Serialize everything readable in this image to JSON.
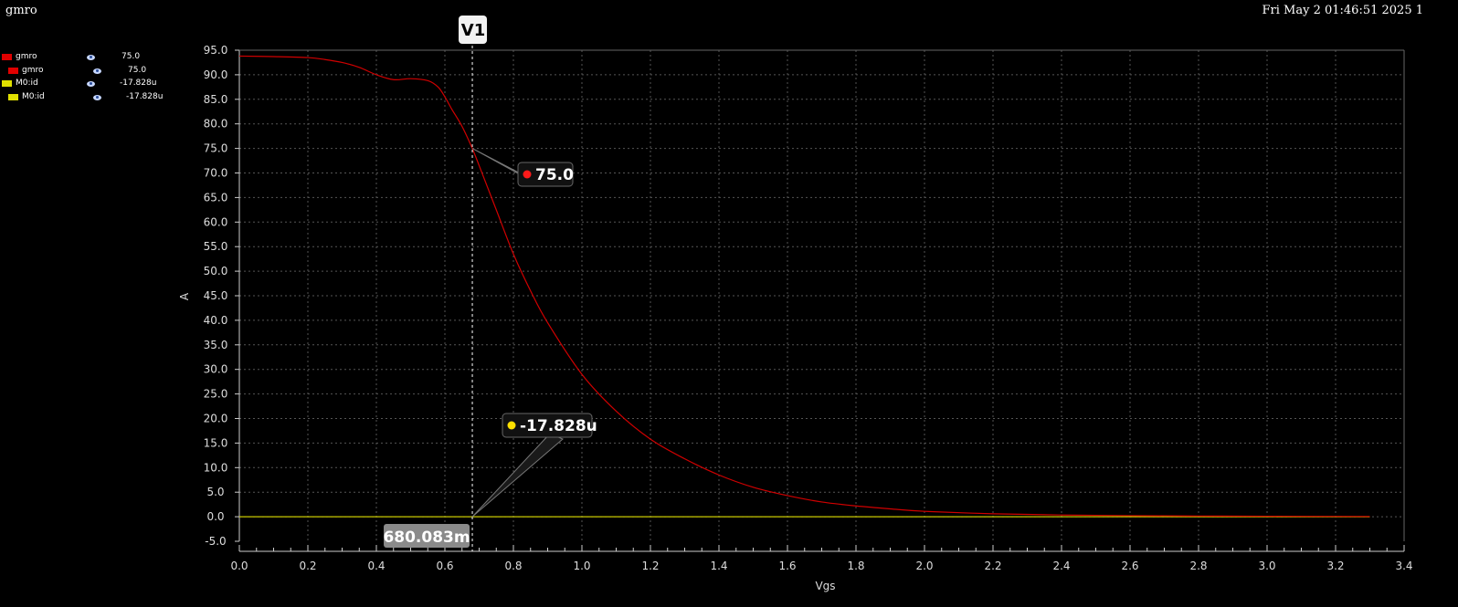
{
  "window": {
    "title": "gmro",
    "datetime": "Fri May 2 01:46:51 2025  1"
  },
  "legend": [
    {
      "name": "gmro",
      "value": "75.0",
      "color": "#e00000",
      "indent": false
    },
    {
      "name": "gmro",
      "value": "75.0",
      "color": "#e00000",
      "indent": true
    },
    {
      "name": "M0:id",
      "value": "-17.828u",
      "color": "#e0e000",
      "indent": false
    },
    {
      "name": "M0:id",
      "value": "-17.828u",
      "color": "#e0e000",
      "indent": true
    }
  ],
  "marker": {
    "label": "V1",
    "x_value": 0.680083,
    "x_readout": "680.083m",
    "readouts": [
      {
        "series": "gmro",
        "text": "75.0",
        "y": 75.0,
        "color": "#ff1a1a"
      },
      {
        "series": "M0:id",
        "text": "-17.828u",
        "y": 0.0,
        "color": "#ffe000"
      }
    ]
  },
  "chart_data": {
    "type": "line",
    "xlabel": "Vgs",
    "ylabel": "A",
    "xlim": [
      0.0,
      3.4
    ],
    "ylim": [
      -5.0,
      95.0
    ],
    "x_ticks": [
      "0.0",
      "0.2",
      "0.4",
      "0.6",
      "0.8",
      "1.0",
      "1.2",
      "1.4",
      "1.6",
      "1.8",
      "2.0",
      "2.2",
      "2.4",
      "2.6",
      "2.8",
      "3.0",
      "3.2",
      "3.4"
    ],
    "y_ticks": [
      "95.0",
      "90.0",
      "85.0",
      "80.0",
      "75.0",
      "70.0",
      "65.0",
      "60.0",
      "55.0",
      "50.0",
      "45.0",
      "40.0",
      "35.0",
      "30.0",
      "25.0",
      "20.0",
      "15.0",
      "10.0",
      "5.0",
      "0.0",
      "-5.0"
    ],
    "grid": true,
    "series": [
      {
        "name": "gmro",
        "color": "#d00000",
        "x": [
          0.0,
          0.1,
          0.2,
          0.25,
          0.3,
          0.35,
          0.4,
          0.45,
          0.5,
          0.55,
          0.58,
          0.6,
          0.62,
          0.65,
          0.68,
          0.7,
          0.75,
          0.8,
          0.85,
          0.9,
          1.0,
          1.1,
          1.2,
          1.3,
          1.4,
          1.5,
          1.6,
          1.7,
          1.8,
          1.9,
          2.0,
          2.2,
          2.4,
          2.6,
          2.8,
          3.0,
          3.3
        ],
        "y": [
          93.8,
          93.7,
          93.5,
          93.1,
          92.5,
          91.5,
          90.0,
          89.0,
          89.2,
          88.8,
          87.5,
          85.5,
          83.0,
          79.5,
          75.0,
          71.5,
          62.5,
          53.5,
          46.0,
          39.5,
          29.0,
          21.5,
          15.8,
          11.8,
          8.5,
          6.0,
          4.3,
          3.0,
          2.2,
          1.6,
          1.1,
          0.6,
          0.35,
          0.22,
          0.15,
          0.1,
          0.05
        ]
      },
      {
        "name": "M0:id",
        "color": "#c8c800",
        "x": [
          0.0,
          3.3
        ],
        "y": [
          0.0,
          0.0
        ]
      }
    ]
  }
}
